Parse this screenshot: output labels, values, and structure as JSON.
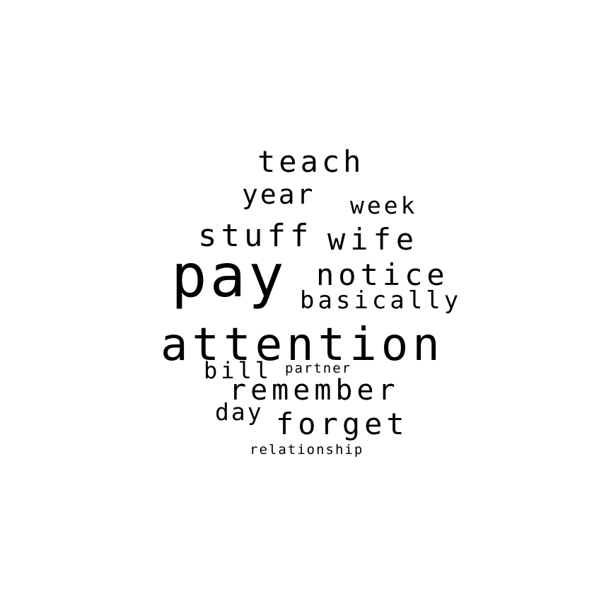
{
  "background_color": "#ffffff",
  "text_color": "#000000",
  "words": {
    "teach": "teach",
    "year": "year",
    "week": "week",
    "stuff": "stuff",
    "wife": "wife",
    "pay": "pay",
    "notice": "notice",
    "basically": "basically",
    "attention": "attention",
    "bill": "bill",
    "partner": "partner",
    "remember": "remember",
    "day": "day",
    "forget": "forget",
    "relationship": "relationship"
  }
}
